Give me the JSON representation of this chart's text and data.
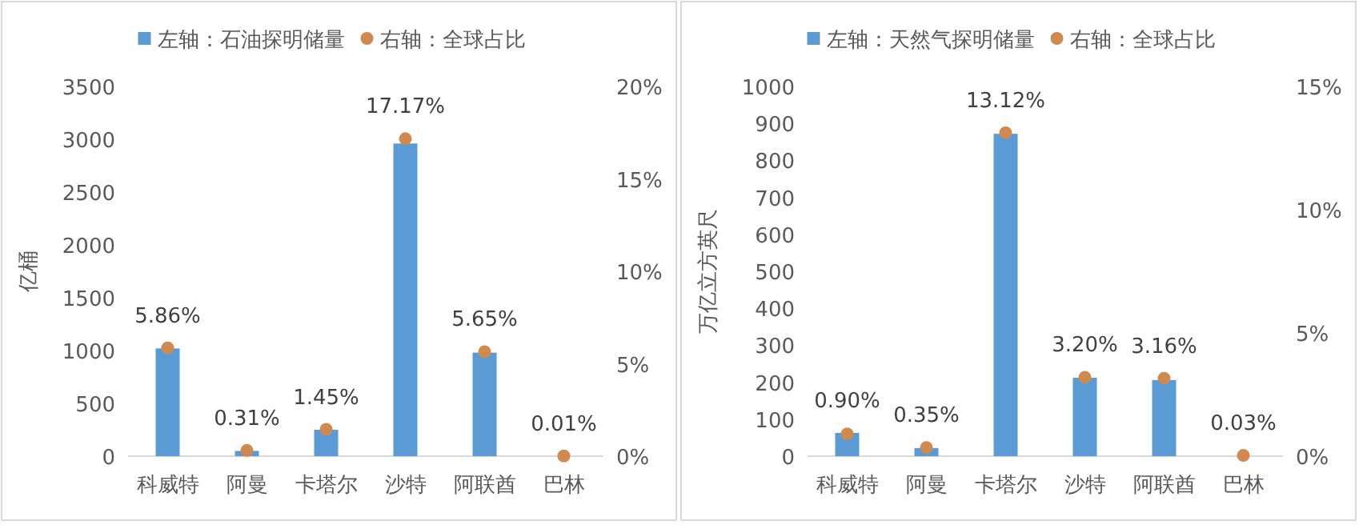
{
  "chart_data": [
    {
      "type": "bar",
      "categories": [
        "科威特",
        "阿曼",
        "卡塔尔",
        "沙特",
        "阿联酋",
        "巴林"
      ],
      "ylabel": "亿桶",
      "ylim": [
        0,
        3500
      ],
      "yticks": [
        0,
        500,
        1000,
        1500,
        2000,
        2500,
        3000,
        3500
      ],
      "y2lim": [
        0,
        20
      ],
      "y2ticks": [
        {
          "value": 0,
          "label": "0%"
        },
        {
          "value": 5,
          "label": "5%"
        },
        {
          "value": 10,
          "label": "10%"
        },
        {
          "value": 15,
          "label": "15%"
        },
        {
          "value": 20,
          "label": "20%"
        }
      ],
      "legend": "top",
      "grid": false,
      "series": [
        {
          "name": "左轴：石油探明储量",
          "color": "#5b9bd5",
          "values": [
            1020,
            50,
            250,
            2960,
            980,
            0
          ]
        },
        {
          "name": "右轴：全球占比",
          "type": "scatter",
          "axis": "y2",
          "marker": "circle",
          "color": "#d08a4e",
          "values": [
            5.86,
            0.31,
            1.45,
            17.17,
            5.65,
            0.01
          ],
          "value_labels": [
            "5.86%",
            "0.31%",
            "1.45%",
            "17.17%",
            "5.65%",
            "0.01%"
          ]
        }
      ]
    },
    {
      "type": "bar",
      "categories": [
        "科威特",
        "阿曼",
        "卡塔尔",
        "沙特",
        "阿联酋",
        "巴林"
      ],
      "ylabel": "万亿立方英尺",
      "ylim": [
        0,
        1000
      ],
      "yticks": [
        0,
        100,
        200,
        300,
        400,
        500,
        600,
        700,
        800,
        900,
        1000
      ],
      "y2lim": [
        0,
        15
      ],
      "y2ticks": [
        {
          "value": 0,
          "label": "0%"
        },
        {
          "value": 5,
          "label": "5%"
        },
        {
          "value": 10,
          "label": "10%"
        },
        {
          "value": 15,
          "label": "15%"
        }
      ],
      "legend": "top",
      "grid": false,
      "series": [
        {
          "name": "左轴：天然气探明储量",
          "color": "#5b9bd5",
          "values": [
            63,
            22,
            872,
            212,
            206,
            null
          ]
        },
        {
          "name": "右轴：全球占比",
          "type": "scatter",
          "axis": "y2",
          "marker": "circle",
          "color": "#d08a4e",
          "values": [
            0.9,
            0.35,
            13.12,
            3.2,
            3.16,
            0.03
          ],
          "value_labels": [
            "0.90%",
            "0.35%",
            "13.12%",
            "3.20%",
            "3.16%",
            "0.03%"
          ]
        }
      ]
    }
  ]
}
